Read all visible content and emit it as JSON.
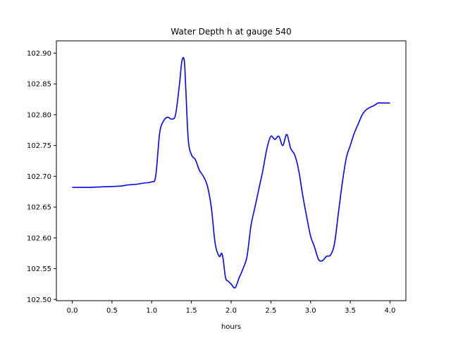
{
  "chart_data": {
    "type": "line",
    "title": "Water Depth h at gauge 540",
    "xlabel": "hours",
    "ylabel": "",
    "xlim": [
      -0.2,
      4.2
    ],
    "ylim": [
      102.498,
      102.92
    ],
    "xticks": [
      0.0,
      0.5,
      1.0,
      1.5,
      2.0,
      2.5,
      3.0,
      3.5,
      4.0
    ],
    "xtick_labels": [
      "0.0",
      "0.5",
      "1.0",
      "1.5",
      "2.0",
      "2.5",
      "3.0",
      "3.5",
      "4.0"
    ],
    "yticks": [
      102.5,
      102.55,
      102.6,
      102.65,
      102.7,
      102.75,
      102.8,
      102.85,
      102.9
    ],
    "ytick_labels": [
      "102.50",
      "102.55",
      "102.60",
      "102.65",
      "102.70",
      "102.75",
      "102.80",
      "102.85",
      "102.90"
    ],
    "grid": false,
    "legend": "none",
    "series": [
      {
        "color": "#0000ff",
        "x": [
          0.0,
          0.2,
          0.4,
          0.6,
          0.7,
          0.8,
          0.9,
          1.0,
          1.05,
          1.1,
          1.15,
          1.2,
          1.25,
          1.3,
          1.35,
          1.38,
          1.41,
          1.43,
          1.46,
          1.5,
          1.55,
          1.6,
          1.65,
          1.7,
          1.75,
          1.8,
          1.85,
          1.88,
          1.9,
          1.93,
          1.96,
          2.0,
          2.05,
          2.1,
          2.15,
          2.2,
          2.25,
          2.3,
          2.35,
          2.4,
          2.45,
          2.5,
          2.55,
          2.6,
          2.65,
          2.7,
          2.75,
          2.8,
          2.85,
          2.9,
          2.95,
          3.0,
          3.05,
          3.1,
          3.15,
          3.2,
          3.25,
          3.3,
          3.35,
          3.4,
          3.45,
          3.5,
          3.55,
          3.6,
          3.65,
          3.7,
          3.75,
          3.8,
          3.85,
          3.9,
          3.95,
          4.0
        ],
        "y": [
          102.682,
          102.682,
          102.683,
          102.684,
          102.686,
          102.687,
          102.689,
          102.691,
          102.7,
          102.77,
          102.79,
          102.796,
          102.793,
          102.8,
          102.85,
          102.887,
          102.888,
          102.84,
          102.76,
          102.735,
          102.727,
          102.71,
          102.7,
          102.685,
          102.65,
          102.59,
          102.57,
          102.575,
          102.565,
          102.535,
          102.53,
          102.525,
          102.519,
          102.535,
          102.55,
          102.57,
          102.62,
          102.65,
          102.68,
          102.71,
          102.745,
          102.765,
          102.76,
          102.765,
          102.75,
          102.768,
          102.745,
          102.735,
          102.71,
          102.67,
          102.635,
          102.603,
          102.585,
          102.565,
          102.563,
          102.57,
          102.572,
          102.59,
          102.64,
          102.69,
          102.73,
          102.75,
          102.77,
          102.785,
          102.8,
          102.808,
          102.812,
          102.815,
          102.819,
          102.819,
          102.819,
          102.819
        ]
      }
    ]
  }
}
